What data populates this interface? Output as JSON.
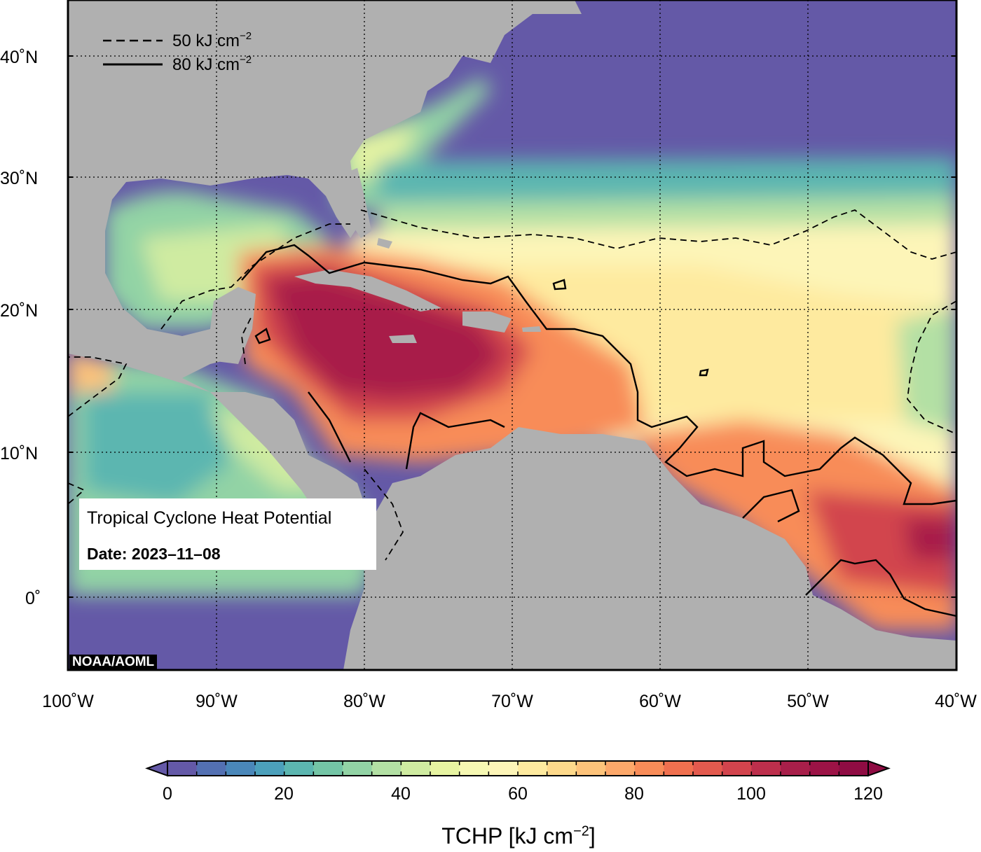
{
  "map": {
    "title": "Tropical Cyclone Heat Potential",
    "date": "Date: 2023–11–08",
    "credit": "NOAA/AOML",
    "lon_range": [
      -100,
      -40
    ],
    "lat_range": [
      -5,
      44
    ],
    "lon_ticks": [
      "100˚W",
      "90˚W",
      "80˚W",
      "70˚W",
      "60˚W",
      "50˚W",
      "40˚W"
    ],
    "lat_ticks": [
      "40˚N",
      "30˚N",
      "20˚N",
      "10˚N",
      "0˚"
    ],
    "grid": "dotted",
    "land_color": "#b0b0b0",
    "ocean_cold_color": "#6559a6",
    "ocean_hot_color": "#a3134a"
  },
  "contour_legend": {
    "dashed_label": "50 kJ cm",
    "solid_label": "80 kJ cm",
    "exponent": "−2"
  },
  "colorbar": {
    "ticks": [
      "0",
      "20",
      "40",
      "60",
      "80",
      "100",
      "120"
    ],
    "min": 0,
    "max": 120,
    "step": 5,
    "title": "TCHP [kJ cm",
    "title_exp": "−2",
    "title_end": "]",
    "colors": [
      "#6459a7",
      "#5370b2",
      "#4a87b9",
      "#4ca0bb",
      "#5cb6b0",
      "#74c5a6",
      "#92d3a5",
      "#b3e0a4",
      "#cfeba1",
      "#e7f4a2",
      "#f6f8b3",
      "#fdf5b8",
      "#feea9f",
      "#fdd98b",
      "#fdc37a",
      "#fca86a",
      "#f88c58",
      "#f0704f",
      "#e35a4e",
      "#d2444d",
      "#bd2f4c",
      "#a81f4a",
      "#9c1346",
      "#8f0c43"
    ]
  }
}
